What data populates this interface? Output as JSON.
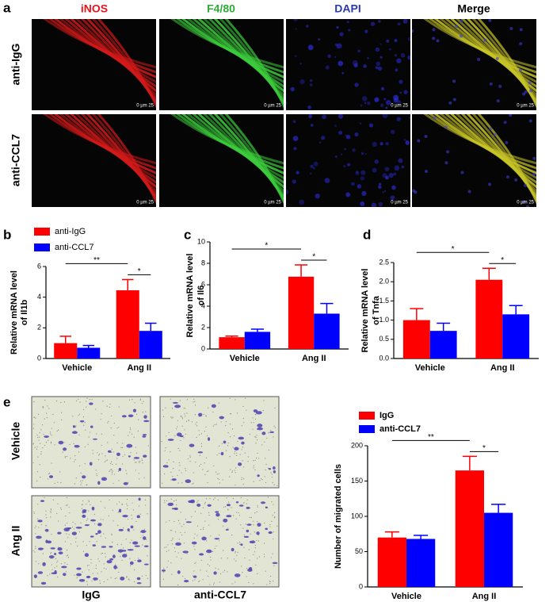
{
  "panel_labels": [
    "a",
    "b",
    "c",
    "d",
    "e"
  ],
  "panel_a": {
    "columns": [
      "iNOS",
      "F4/80",
      "DAPI",
      "Merge"
    ],
    "rows": [
      "anti-IgG",
      "anti-CCL7"
    ],
    "scale_label": "0 µm 25"
  },
  "panel_e": {
    "rows": [
      "Vehicle",
      "Ang II"
    ],
    "columns": [
      "IgG",
      "anti-CCL7"
    ]
  },
  "chart_data": [
    {
      "type": "bar",
      "y_label": [
        "Relative mRNA level",
        "of Il1b"
      ],
      "categories": [
        "Vehicle",
        "Ang II"
      ],
      "series": [
        {
          "name": "anti-IgG",
          "color": "#ff0000",
          "values": [
            1.0,
            4.45
          ],
          "errors": [
            0.45,
            0.7
          ]
        },
        {
          "name": "anti-CCL7",
          "color": "#0000ff",
          "values": [
            0.7,
            1.8
          ],
          "errors": [
            0.15,
            0.5
          ]
        }
      ],
      "ylim": [
        0,
        6
      ],
      "yticks": [
        0,
        2,
        4,
        6
      ],
      "significance": [
        "**",
        "*"
      ]
    },
    {
      "type": "bar",
      "y_label": [
        "Relative mRNA level",
        "of Il6"
      ],
      "categories": [
        "Vehicle",
        "Ang II"
      ],
      "series": [
        {
          "color": "#ff0000",
          "values": [
            1.1,
            6.75
          ],
          "errors": [
            0.1,
            1.1
          ]
        },
        {
          "color": "#0000ff",
          "values": [
            1.6,
            3.3
          ],
          "errors": [
            0.25,
            0.95
          ]
        }
      ],
      "ylim": [
        0,
        10
      ],
      "yticks": [
        0,
        2,
        4,
        6,
        8,
        10
      ],
      "significance": [
        "*",
        "*"
      ]
    },
    {
      "type": "bar",
      "y_label": [
        "Relative mRNA level",
        "of Tnfa"
      ],
      "categories": [
        "Vehicle",
        "Ang II"
      ],
      "series": [
        {
          "color": "#ff0000",
          "values": [
            1.0,
            2.05
          ],
          "errors": [
            0.3,
            0.3
          ]
        },
        {
          "color": "#0000ff",
          "values": [
            0.72,
            1.15
          ],
          "errors": [
            0.2,
            0.23
          ]
        }
      ],
      "ylim": [
        0,
        2.5
      ],
      "yticks": [
        {
          "value": 0,
          "label": "0.0"
        },
        0.5,
        {
          "value": 1,
          "label": "1.0"
        },
        1.5,
        {
          "value": 2,
          "label": "2.0"
        },
        2.5
      ],
      "significance": [
        "*",
        "*"
      ]
    },
    {
      "type": "bar",
      "y_label": [
        "Number of migrated cells"
      ],
      "categories": [
        "Vehicle",
        "Ang II"
      ],
      "series": [
        {
          "name": "IgG",
          "color": "#ff0000",
          "values": [
            70,
            165
          ],
          "errors": [
            8,
            20
          ]
        },
        {
          "name": "anti-CCL7",
          "color": "#0000ff",
          "values": [
            68,
            105
          ],
          "errors": [
            5,
            12
          ]
        }
      ],
      "ylim": [
        0,
        200
      ],
      "yticks": [
        0,
        50,
        100,
        150,
        200
      ],
      "significance": [
        "**",
        "*"
      ]
    }
  ]
}
